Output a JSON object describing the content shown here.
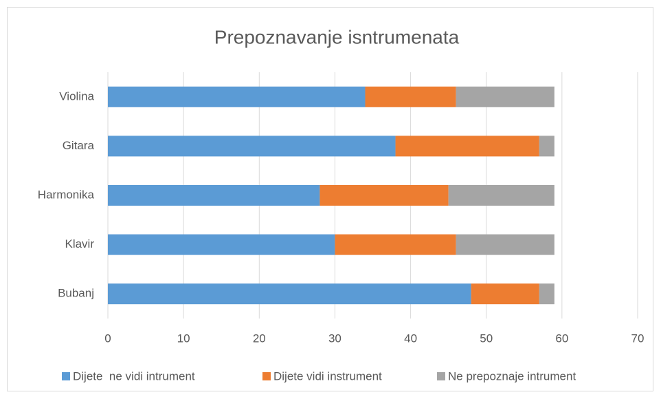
{
  "chart_data": {
    "type": "stacked-barh",
    "title": "Prepoznavanje isntrumenata",
    "categories": [
      "Violina",
      "Gitara",
      "Harmonika",
      "Klavir",
      "Bubanj"
    ],
    "series": [
      {
        "name": "Dijete  ne vidi intrument",
        "color": "#5b9bd5",
        "values": [
          34,
          38,
          28,
          30,
          48
        ]
      },
      {
        "name": "Dijete vidi instrument",
        "color": "#ed7d31",
        "values": [
          12,
          19,
          17,
          16,
          9
        ]
      },
      {
        "name": "Ne prepoznaje intrument",
        "color": "#a5a5a5",
        "values": [
          13,
          2,
          14,
          13,
          2
        ]
      }
    ],
    "xlim": [
      0,
      70
    ],
    "xticks": [
      0,
      10,
      20,
      30,
      40,
      50,
      60,
      70
    ],
    "grid": true,
    "legend": "bottom"
  }
}
